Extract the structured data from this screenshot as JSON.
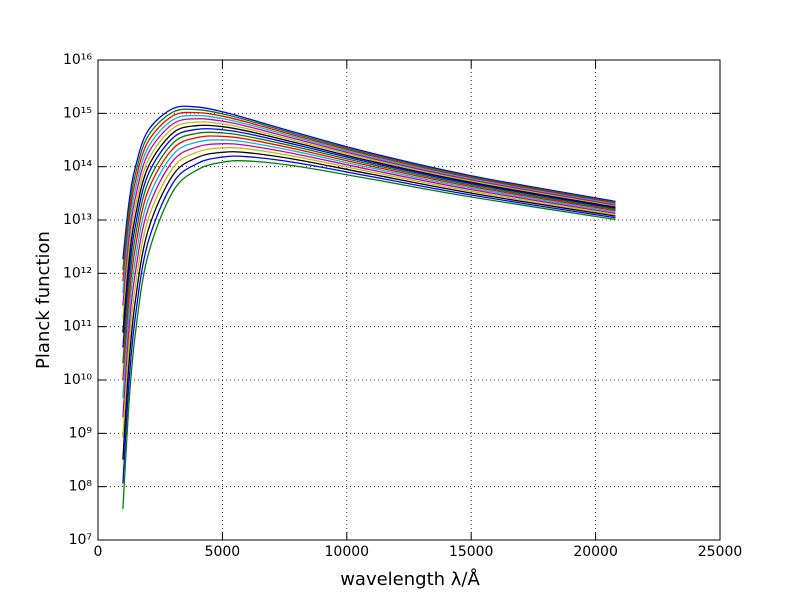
{
  "chart_data": {
    "type": "line",
    "xlabel": "wavelength λ/Å",
    "ylabel": "Planck function",
    "yscale": "log",
    "grid": true,
    "xlim": [
      0,
      25000
    ],
    "xticks": [
      0,
      5000,
      10000,
      15000,
      20000,
      25000
    ],
    "ylim": [
      10000000.0,
      1e+16
    ],
    "yticks": [
      {
        "value": 10000000.0,
        "label": "10⁷"
      },
      {
        "value": 100000000.0,
        "label": "10⁸"
      },
      {
        "value": 1000000000.0,
        "label": "10⁹"
      },
      {
        "value": 10000000000.0,
        "label": "10¹⁰"
      },
      {
        "value": 100000000000.0,
        "label": "10¹¹"
      },
      {
        "value": 1000000000000.0,
        "label": "10¹²"
      },
      {
        "value": 10000000000000.0,
        "label": "10¹³"
      },
      {
        "value": 100000000000000.0,
        "label": "10¹⁴"
      },
      {
        "value": 1000000000000000.0,
        "label": "10¹⁵"
      },
      {
        "value": 1e+16,
        "label": "10¹⁶"
      }
    ],
    "x": [
      1000,
      1250,
      1500,
      2000,
      3000,
      4000,
      5000,
      6000,
      8000,
      11000,
      15000,
      20800
    ],
    "series": [
      {
        "color": "#0000ff",
        "values": [
          1840000000000.0,
          22000000000000.0,
          97000000000000.0,
          463000000000000.0,
          1220000000000000.0,
          1310000000000000.0,
          1070000000000000.0,
          800000000000000.0,
          429000000000000.0,
          179000000000000.0,
          67700000000000.0,
          22300000000000.0
        ]
      },
      {
        "color": "#008000",
        "values": [
          1160000000000.0,
          15200000000000.0,
          71500000000000.0,
          367000000000000.0,
          1050000000000000.0,
          1170000000000000.0,
          977000000000000.0,
          743000000000000.0,
          402000000000000.0,
          170000000000000.0,
          64800000000000.0,
          21400000000000.0
        ]
      },
      {
        "color": "#ff0000",
        "values": [
          714000000000.0,
          10300000000000.0,
          51800000000000.0,
          288000000000000.0,
          892000000000000.0,
          1030000000000000.0,
          884000000000000.0,
          682000000000000.0,
          376000000000000.0,
          161000000000000.0,
          61900000000000.0,
          20600000000000.0
        ]
      },
      {
        "color": "#00bfbf",
        "values": [
          429000000000.0,
          6860000000000.0,
          36800000000000.0,
          223000000000000.0,
          752000000000000.0,
          908000000000000.0,
          796000000000000.0,
          624000000000000.0,
          351000000000000.0,
          152000000000000.0,
          59000000000000.0,
          19800000000000.0
        ]
      },
      {
        "color": "#bf00bf",
        "values": [
          249000000000.0,
          4450000000000.0,
          25700000000000.0,
          171000000000000.0,
          628000000000000.0,
          792000000000000.0,
          713000000000000.0,
          569000000000000.0,
          326000000000000.0,
          143000000000000.0,
          56200000000000.0,
          19000000000000.0
        ]
      },
      {
        "color": "#bfbf00",
        "values": [
          141000000000.0,
          2820000000000.0,
          17500000000000.0,
          128000000000000.0,
          519000000000000.0,
          686000000000000.0,
          635000000000000.0,
          515000000000000.0,
          301000000000000.0,
          135000000000000.0,
          53400000000000.0,
          18100000000000.0
        ]
      },
      {
        "color": "#000000",
        "values": [
          77100000000.0,
          1740000000000.0,
          11700000000000.0,
          94700000000000.0,
          424000000000000.0,
          590000000000000.0,
          562000000000000.0,
          465000000000000.0,
          278000000000000.0,
          126000000000000.0,
          50600000000000.0,
          17300000000000.0
        ]
      },
      {
        "color": "#0000ff",
        "values": [
          40500000000.0,
          1040000000000.0,
          7650000000000.0,
          68700000000000.0,
          343000000000000.0,
          502000000000000.0,
          493000000000000.0,
          416000000000000.0,
          255000000000000.0,
          118000000000000.0,
          47900000000000.0,
          16500000000000.0
        ]
      },
      {
        "color": "#008000",
        "values": [
          20600000000.0,
          603000000000.0,
          4860000000000.0,
          48900000000000.0,
          273000000000000.0,
          423000000000000.0,
          430000000000000.0,
          370000000000000.0,
          233000000000000.0,
          110000000000000.0,
          45100000000000.0,
          15700000000000.0
        ]
      },
      {
        "color": "#ff0000",
        "values": [
          9950000000.0,
          338000000000.0,
          2990000000000.0,
          34000000000000.0,
          214000000000000.0,
          353000000000000.0,
          371000000000000.0,
          327000000000000.0,
          211000000000000.0,
          102000000000000.0,
          42400000000000.0,
          14900000000000.0
        ]
      },
      {
        "color": "#00bfbf",
        "values": [
          4590000000.0,
          182000000000.0,
          1790000000000.0,
          23100000000000.0,
          166000000000000.0,
          290000000000000.0,
          318000000000000.0,
          287000000000000.0,
          191000000000000.0,
          94300000000000.0,
          39700000000000.0,
          14100000000000.0
        ]
      },
      {
        "color": "#bf00bf",
        "values": [
          2000000000.0,
          93800000000.0,
          1030000000000.0,
          15300000000000.0,
          126000000000000.0,
          236000000000000.0,
          269000000000000.0,
          249000000000000.0,
          171000000000000.0,
          86600000000000.0,
          37100000000000.0,
          13300000000000.0
        ]
      },
      {
        "color": "#bfbf00",
        "values": [
          827000000.0,
          46200000000.0,
          571000000000.0,
          9820000000000.0,
          93600000000000.0,
          189000000000000.0,
          225000000000000.0,
          215000000000000.0,
          153000000000000.0,
          79200000000000.0,
          34500000000000.0,
          12500000000000.0
        ]
      },
      {
        "color": "#000000",
        "values": [
          320000000.0,
          21600000000.0,
          302000000000.0,
          6100000000000.0,
          68100000000000.0,
          149000000000000.0,
          186000000000000.0,
          183000000000000.0,
          135000000000000.0,
          72000000000000.0,
          31900000000000.0,
          11800000000000.0
        ]
      },
      {
        "color": "#0000ff",
        "values": [
          115000000.0,
          9510000000.0,
          153000000000.0,
          3650000000000.0,
          48400000000000.0,
          115000000000000.0,
          151000000000000.0,
          154000000000000.0,
          118000000000000.0,
          65000000000000.0,
          29400000000000.0,
          11000000000000.0
        ]
      },
      {
        "color": "#008000",
        "values": [
          37900000.0,
          3920000000.0,
          73100000000.0,
          2100000000000.0,
          33500000000000.0,
          87400000000000.0,
          121000000000000.0,
          128000000000000.0,
          102000000000000.0,
          58300000000000.0,
          27000000000000.0,
          10200000000000.0
        ]
      }
    ]
  }
}
